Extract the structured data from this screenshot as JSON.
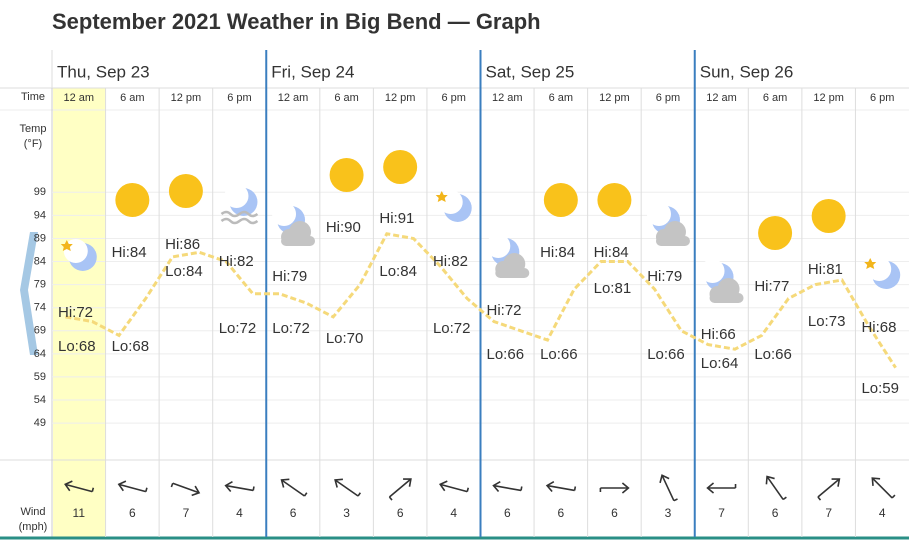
{
  "title": "September 2021 Weather in Big Bend — Graph",
  "chart_data": {
    "type": "line",
    "days": [
      "Thu, Sep 23",
      "Fri, Sep 24",
      "Sat, Sep 25",
      "Sun, Sep 26"
    ],
    "times": [
      "12 am",
      "6 am",
      "12 pm",
      "6 pm",
      "12 am",
      "6 am",
      "12 pm",
      "6 pm",
      "12 am",
      "6 am",
      "12 pm",
      "6 pm",
      "12 am",
      "6 am",
      "12 pm",
      "6 pm"
    ],
    "row_labels": {
      "time": "Time",
      "temp": [
        "Temp",
        "(°F)"
      ],
      "wind": [
        "Wind",
        "(mph)"
      ]
    },
    "ylim": [
      41,
      106
    ],
    "yticks": [
      49,
      54,
      59,
      64,
      69,
      74,
      79,
      84,
      89,
      94,
      99
    ],
    "grid": true,
    "series": [
      {
        "name": "Temperature",
        "color": "#f5d97a",
        "values": [
          72,
          71,
          68,
          76,
          85,
          86,
          84,
          77,
          77,
          75,
          72,
          79,
          90,
          89,
          83,
          76,
          71,
          69,
          67,
          78,
          84,
          84,
          78,
          69,
          66,
          65,
          68,
          76,
          79,
          80,
          70,
          61
        ]
      }
    ],
    "hi_labels": [
      "Hi:72",
      "Hi:84",
      "Hi:86",
      "Hi:82",
      "Hi:79",
      "Hi:90",
      "Hi:91",
      "Hi:82",
      "Hi:72",
      "Hi:84",
      "Hi:84",
      "Hi:79",
      "Hi:66",
      "Hi:77",
      "Hi:81",
      "Hi:68"
    ],
    "lo_labels": [
      "Lo:68",
      "Lo:68",
      "Lo:84",
      "Lo:72",
      "Lo:72",
      "Lo:70",
      "Lo:84",
      "Lo:72",
      "Lo:66",
      "Lo:66",
      "Lo:81",
      "Lo:66",
      "Lo:64",
      "Lo:66",
      "Lo:73",
      "Lo:59"
    ],
    "wind": [
      11,
      6,
      7,
      4,
      6,
      3,
      6,
      4,
      6,
      6,
      6,
      3,
      7,
      6,
      7,
      4
    ]
  }
}
